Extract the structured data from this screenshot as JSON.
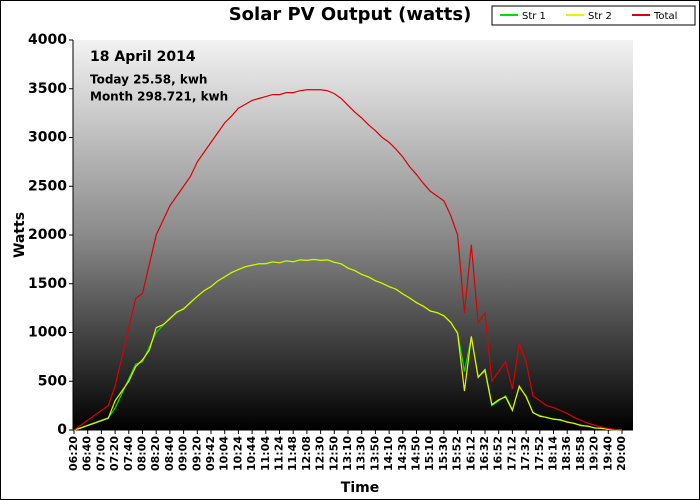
{
  "chart_data": {
    "type": "line",
    "title": "Solar PV Output (watts)",
    "y_label": "Watts",
    "x_label": "Time",
    "annotations": [
      "18 April 2014",
      "Today 25.58, kwh",
      "Month 298.721, kwh"
    ],
    "categories": [
      "06:20",
      null,
      "06:40",
      null,
      "07:00",
      null,
      "07:20",
      null,
      "07:40",
      null,
      "08:00",
      null,
      "08:20",
      null,
      "08:40",
      null,
      "09:00",
      null,
      "09:20",
      null,
      "09:42",
      null,
      "10:04",
      null,
      "10:24",
      null,
      "10:44",
      null,
      "11:04",
      null,
      "11:24",
      null,
      "11:48",
      null,
      "12:08",
      null,
      "12:30",
      null,
      "12:50",
      null,
      "13:10",
      null,
      "13:30",
      null,
      "13:50",
      null,
      "14:10",
      null,
      "14:30",
      null,
      "14:50",
      null,
      "15:10",
      null,
      "15:30",
      null,
      "15:52",
      null,
      "16:12",
      null,
      "16:32",
      null,
      "16:52",
      null,
      "17:12",
      null,
      "17:32",
      null,
      "17:52",
      null,
      "18:14",
      null,
      "18:36",
      null,
      "18:58",
      null,
      "19:20",
      null,
      "19:40",
      null,
      "20:00"
    ],
    "series": [
      {
        "name": "Str 1",
        "color": "#00dd00",
        "values": [
          0,
          25,
          50,
          75,
          100,
          125,
          225,
          375,
          525,
          675,
          700,
          850,
          1000,
          1075,
          1150,
          1200,
          1250,
          1300,
          1375,
          1425,
          1475,
          1525,
          1575,
          1610,
          1650,
          1670,
          1690,
          1700,
          1710,
          1720,
          1720,
          1730,
          1730,
          1740,
          1745,
          1745,
          1745,
          1740,
          1725,
          1700,
          1665,
          1630,
          1600,
          1565,
          1535,
          1500,
          1475,
          1440,
          1400,
          1350,
          1310,
          1265,
          1225,
          1200,
          1175,
          1100,
          1000,
          600,
          950,
          550,
          600,
          250,
          300,
          350,
          210,
          440,
          350,
          175,
          150,
          125,
          115,
          100,
          85,
          65,
          50,
          35,
          25,
          15,
          8,
          3,
          0
        ]
      },
      {
        "name": "Str 2",
        "color": "#eeee00",
        "values": [
          0,
          20,
          45,
          70,
          95,
          120,
          300,
          400,
          500,
          650,
          720,
          820,
          1050,
          1080,
          1140,
          1210,
          1240,
          1310,
          1370,
          1430,
          1470,
          1530,
          1570,
          1615,
          1645,
          1675,
          1690,
          1705,
          1705,
          1725,
          1715,
          1735,
          1725,
          1745,
          1740,
          1750,
          1740,
          1745,
          1720,
          1705,
          1660,
          1635,
          1595,
          1570,
          1530,
          1505,
          1470,
          1445,
          1395,
          1355,
          1305,
          1270,
          1220,
          1205,
          1170,
          1105,
          990,
          400,
          960,
          540,
          620,
          260,
          310,
          340,
          200,
          450,
          340,
          180,
          140,
          130,
          110,
          105,
          80,
          70,
          45,
          40,
          20,
          18,
          6,
          4,
          0
        ]
      },
      {
        "name": "Total",
        "color": "#dd0000",
        "values": [
          0,
          50,
          100,
          150,
          200,
          250,
          450,
          750,
          1050,
          1350,
          1400,
          1700,
          2000,
          2150,
          2300,
          2400,
          2500,
          2600,
          2750,
          2850,
          2950,
          3050,
          3150,
          3220,
          3300,
          3340,
          3380,
          3400,
          3420,
          3440,
          3440,
          3460,
          3460,
          3480,
          3490,
          3490,
          3490,
          3480,
          3450,
          3400,
          3330,
          3260,
          3200,
          3130,
          3070,
          3000,
          2950,
          2880,
          2800,
          2700,
          2620,
          2530,
          2450,
          2400,
          2350,
          2200,
          2000,
          1200,
          1900,
          1100,
          1200,
          500,
          600,
          700,
          420,
          880,
          700,
          350,
          300,
          250,
          230,
          200,
          170,
          130,
          100,
          70,
          50,
          30,
          15,
          5,
          0
        ]
      }
    ],
    "ylim": [
      0,
      4000
    ],
    "yticks": [
      0,
      500,
      1000,
      1500,
      2000,
      2500,
      3000,
      3500,
      4000
    ],
    "legend": "top-right"
  }
}
